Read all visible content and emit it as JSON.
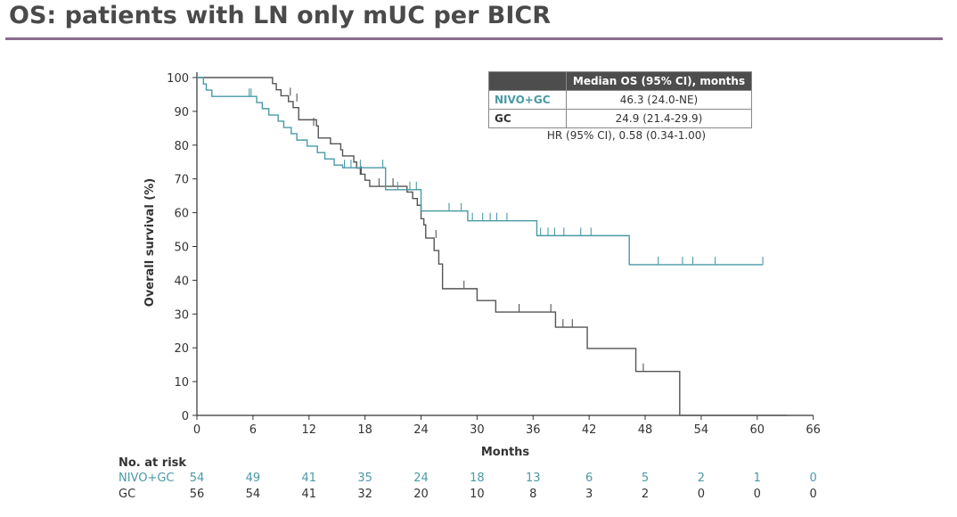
{
  "title": "OS: patients with LN only mUC per BICR",
  "colors": {
    "nivo_gc": "#4a9aa5",
    "gc": "#555555",
    "title_rule": "#8e6b8e",
    "table_header_bg": "#4d4d4d"
  },
  "median_table": {
    "header": "Median OS (95% CI), months",
    "rows": [
      {
        "arm": "NIVO+GC",
        "value": "46.3 (24.0-NE)"
      },
      {
        "arm": "GC",
        "value": "24.9 (21.4-29.9)"
      }
    ],
    "hr_text": "HR (95% CI), 0.58 (0.34-1.00)"
  },
  "risk_table": {
    "title": "No. at risk",
    "rows": [
      {
        "arm": "NIVO+GC",
        "values": [
          "54",
          "49",
          "41",
          "35",
          "24",
          "18",
          "13",
          "6",
          "5",
          "2",
          "1",
          "0"
        ]
      },
      {
        "arm": "GC",
        "values": [
          "56",
          "54",
          "41",
          "32",
          "20",
          "10",
          "8",
          "3",
          "2",
          "0",
          "0",
          "0"
        ]
      }
    ]
  },
  "chart_data": {
    "type": "line",
    "subtype": "kaplan-meier-step",
    "title": "OS: patients with LN only mUC per BICR",
    "xlabel": "Months",
    "ylabel": "Overall survival (%)",
    "xlim": [
      0,
      66
    ],
    "ylim": [
      0,
      100
    ],
    "xticks": [
      0,
      6,
      12,
      18,
      24,
      30,
      36,
      42,
      48,
      54,
      60,
      66
    ],
    "yticks": [
      0,
      10,
      20,
      30,
      40,
      50,
      60,
      70,
      80,
      90,
      100
    ],
    "grid": false,
    "series": [
      {
        "name": "NIVO+GC",
        "color": "#4a9aa5",
        "steps": [
          [
            0,
            100
          ],
          [
            0.7,
            98.1
          ],
          [
            1.0,
            96.3
          ],
          [
            1.6,
            94.4
          ],
          [
            6.4,
            92.6
          ],
          [
            7.0,
            90.8
          ],
          [
            7.7,
            88.9
          ],
          [
            8.7,
            87.1
          ],
          [
            9.3,
            85.2
          ],
          [
            10.1,
            83.4
          ],
          [
            10.7,
            81.5
          ],
          [
            11.8,
            79.7
          ],
          [
            12.9,
            77.8
          ],
          [
            13.7,
            75.9
          ],
          [
            14.7,
            74.1
          ],
          [
            15.6,
            73.3
          ],
          [
            20.2,
            66.8
          ],
          [
            24.0,
            60.5
          ],
          [
            29.0,
            57.6
          ],
          [
            36.4,
            53.2
          ],
          [
            46.3,
            44.6
          ],
          [
            60.6,
            44.6
          ]
        ],
        "censored": [
          [
            5.6,
            94.4
          ],
          [
            5.8,
            94.4
          ],
          [
            15.8,
            73.3
          ],
          [
            16.5,
            73.3
          ],
          [
            17.5,
            73.3
          ],
          [
            19.9,
            73.3
          ],
          [
            21.5,
            66.8
          ],
          [
            22.8,
            66.8
          ],
          [
            23.5,
            66.8
          ],
          [
            27.0,
            60.5
          ],
          [
            28.3,
            60.5
          ],
          [
            29.5,
            57.6
          ],
          [
            30.6,
            57.6
          ],
          [
            31.4,
            57.6
          ],
          [
            32.1,
            57.6
          ],
          [
            33.2,
            57.6
          ],
          [
            36.8,
            53.2
          ],
          [
            37.6,
            53.2
          ],
          [
            38.3,
            53.2
          ],
          [
            39.3,
            53.2
          ],
          [
            41.1,
            53.2
          ],
          [
            42.2,
            53.2
          ],
          [
            49.4,
            44.6
          ],
          [
            52.0,
            44.6
          ],
          [
            53.1,
            44.6
          ],
          [
            55.5,
            44.6
          ],
          [
            60.6,
            44.6
          ]
        ]
      },
      {
        "name": "GC",
        "color": "#555555",
        "steps": [
          [
            0,
            100
          ],
          [
            8.1,
            98.2
          ],
          [
            8.5,
            96.4
          ],
          [
            9.0,
            94.6
          ],
          [
            9.8,
            92.9
          ],
          [
            10.3,
            91.1
          ],
          [
            10.9,
            87.5
          ],
          [
            12.8,
            85.7
          ],
          [
            13.0,
            82.1
          ],
          [
            14.3,
            80.4
          ],
          [
            15.4,
            78.6
          ],
          [
            15.6,
            76.8
          ],
          [
            16.8,
            75.0
          ],
          [
            17.1,
            73.2
          ],
          [
            17.5,
            71.4
          ],
          [
            18.0,
            69.6
          ],
          [
            18.5,
            67.8
          ],
          [
            22.5,
            66.1
          ],
          [
            23.1,
            64.2
          ],
          [
            23.6,
            62.2
          ],
          [
            24.0,
            58.2
          ],
          [
            24.3,
            56.4
          ],
          [
            24.5,
            52.5
          ],
          [
            25.4,
            48.8
          ],
          [
            25.9,
            44.8
          ],
          [
            26.3,
            37.5
          ],
          [
            30.0,
            34.0
          ],
          [
            32.0,
            30.6
          ],
          [
            38.4,
            26.1
          ],
          [
            41.8,
            19.8
          ],
          [
            47.0,
            13.0
          ],
          [
            51.7,
            0
          ],
          [
            63.2,
            0
          ]
        ],
        "censored": [
          [
            10.0,
            94.6
          ],
          [
            10.7,
            92.9
          ],
          [
            12.5,
            85.7
          ],
          [
            17.6,
            71.4
          ],
          [
            19.5,
            67.8
          ],
          [
            21.0,
            67.8
          ],
          [
            25.6,
            52.5
          ],
          [
            28.6,
            37.5
          ],
          [
            34.5,
            30.6
          ],
          [
            37.9,
            30.6
          ],
          [
            39.2,
            26.1
          ],
          [
            40.2,
            26.1
          ],
          [
            47.8,
            13.0
          ]
        ]
      }
    ],
    "legend": "inline-table top-right"
  }
}
